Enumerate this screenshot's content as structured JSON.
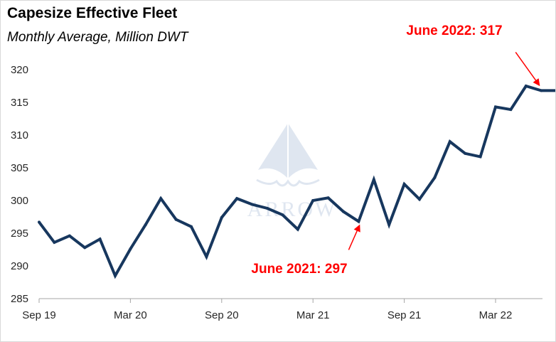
{
  "chart_data": {
    "type": "line",
    "title": "Capesize Effective Fleet",
    "subtitle": "Monthly Average, Million DWT",
    "watermark": "ARROW",
    "colors": {
      "line": "#17375e",
      "annotation": "#ff0000",
      "axis": "#a6a6a6",
      "watermark": "#b9c9de"
    },
    "ylim": [
      285,
      320
    ],
    "yticks": [
      285,
      290,
      295,
      300,
      305,
      310,
      315,
      320
    ],
    "xticks": [
      "Sep 19",
      "Mar 20",
      "Sep 20",
      "Mar 21",
      "Sep 21",
      "Mar 22"
    ],
    "series": [
      {
        "x": [
          "Sep 19",
          "Oct 19",
          "Nov 19",
          "Dec 19",
          "Jan 20",
          "Feb 20",
          "Mar 20",
          "Apr 20",
          "May 20",
          "Jun 20",
          "Jul 20",
          "Aug 20",
          "Sep 20",
          "Oct 20",
          "Nov 20",
          "Dec 20",
          "Jan 21",
          "Feb 21",
          "Mar 21",
          "Apr 21",
          "May 21",
          "Jun 21",
          "Jul 21",
          "Aug 21",
          "Sep 21",
          "Oct 21",
          "Nov 21",
          "Dec 21",
          "Jan 22",
          "Feb 22",
          "Mar 22",
          "Apr 22",
          "May 22",
          "Jun 22",
          "Jul 22"
        ],
        "values": [
          296.7,
          293.6,
          294.6,
          292.8,
          294.1,
          288.5,
          292.6,
          296.3,
          300.3,
          297.1,
          296.0,
          291.4,
          297.4,
          300.3,
          299.4,
          298.8,
          297.8,
          295.6,
          300.0,
          300.4,
          298.3,
          296.8,
          303.2,
          296.3,
          302.5,
          300.2,
          303.5,
          309.0,
          307.2,
          306.7,
          314.3,
          313.9,
          317.5,
          316.8,
          316.8
        ]
      }
    ],
    "annotations": [
      {
        "text": "June 2021: 297",
        "month": "Jun 21",
        "value": 296.8
      },
      {
        "text": "June 2022: 317",
        "month": "Jun 22",
        "value": 316.8
      }
    ]
  }
}
